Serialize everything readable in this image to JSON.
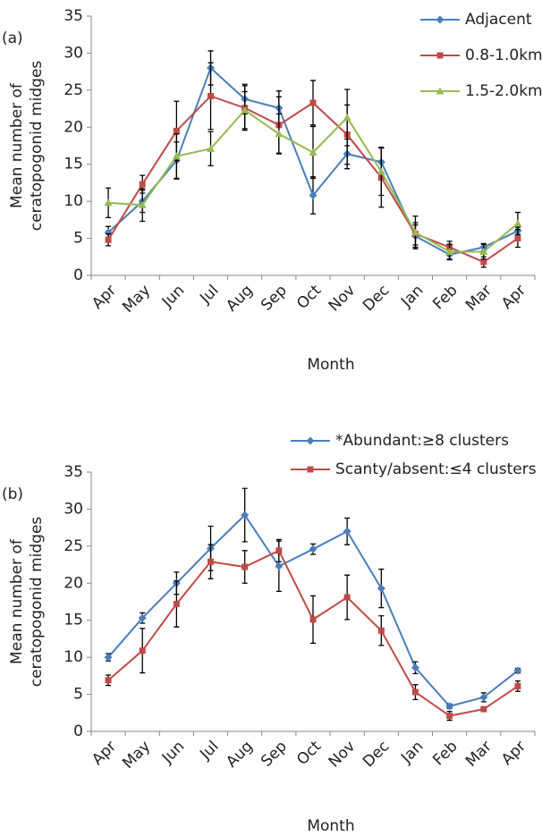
{
  "chart_data": [
    {
      "type": "line",
      "panel_label": "(a)",
      "ylabel": [
        "Mean number of",
        "ceratopogonid midges"
      ],
      "xlabel": "Month",
      "categories": [
        "Apr",
        "May",
        "Jun",
        "Jul",
        "Aug",
        "Sep",
        "Oct",
        "Nov",
        "Dec",
        "Jan",
        "Feb",
        "Mar",
        "Apr"
      ],
      "ylim": [
        0,
        35
      ],
      "yticks": [
        0,
        5,
        10,
        15,
        20,
        25,
        30,
        35
      ],
      "legend": "upper right",
      "series": [
        {
          "name": "Adjacent",
          "color": "#4a7ebb",
          "marker": "diamond",
          "values": [
            5.8,
            10,
            15.5,
            28,
            23.8,
            22.6,
            10.8,
            16.4,
            15.3,
            5.3,
            2.8,
            3.8,
            6
          ],
          "errors": [
            0.8,
            1.5,
            2.5,
            2.3,
            2,
            2.3,
            2.5,
            2,
            2,
            1.5,
            0.7,
            0.5,
            0.5
          ]
        },
        {
          "name": "0.8-1.0km",
          "color": "#be4b48",
          "marker": "square",
          "values": [
            4.8,
            12.3,
            19.5,
            24.2,
            22.6,
            20.3,
            23.3,
            19,
            13.2,
            5.6,
            3.8,
            1.8,
            5
          ],
          "errors": [
            0.8,
            1.2,
            4,
            4.5,
            3,
            3.8,
            3,
            4,
            4,
            1.5,
            0.8,
            0.7,
            1.2
          ]
        },
        {
          "name": "1.5-2.0km",
          "color": "#98b954",
          "marker": "triangle",
          "values": [
            9.8,
            9.5,
            16.1,
            17.1,
            22.3,
            19.1,
            16.6,
            21.3,
            14,
            5.8,
            3.2,
            3.2,
            7
          ],
          "errors": [
            2,
            2.2,
            3,
            2.3,
            2.5,
            2.7,
            3.5,
            3.8,
            3.2,
            2.2,
            1,
            1,
            1.5
          ]
        }
      ]
    },
    {
      "type": "line",
      "panel_label": "(b)",
      "ylabel": [
        "Mean number of",
        "ceratopogonid midges"
      ],
      "xlabel": "Month",
      "categories": [
        "Apr",
        "May",
        "Jun",
        "Jul",
        "Aug",
        "Sep",
        "Oct",
        "Nov",
        "Dec",
        "Jan",
        "Feb",
        "Mar",
        "Apr"
      ],
      "ylim": [
        0,
        35
      ],
      "yticks": [
        0,
        5,
        10,
        15,
        20,
        25,
        30,
        35
      ],
      "legend": "upper right",
      "series": [
        {
          "name": "*Abundant:≥8 clusters",
          "color": "#4a7ebb",
          "marker": "diamond",
          "values": [
            10,
            15.3,
            20,
            24.7,
            29.2,
            22.3,
            24.6,
            27,
            19.3,
            8.6,
            3.4,
            4.6,
            8.2
          ],
          "errors": [
            0.5,
            0.7,
            1.5,
            3,
            3.6,
            3.4,
            0.7,
            1.8,
            2.6,
            0.8,
            0.3,
            0.6,
            0.3
          ]
        },
        {
          "name": "Scanty/absent:≤4 clusters",
          "color": "#be4b48",
          "marker": "square",
          "values": [
            6.9,
            10.9,
            17.2,
            22.9,
            22.2,
            24.4,
            15.1,
            18.1,
            13.6,
            5.3,
            2.1,
            3,
            6.1
          ],
          "errors": [
            0.7,
            3,
            3.1,
            2.3,
            2.2,
            1.5,
            3.2,
            3,
            2,
            1,
            0.6,
            0.3,
            0.7
          ]
        }
      ]
    }
  ]
}
